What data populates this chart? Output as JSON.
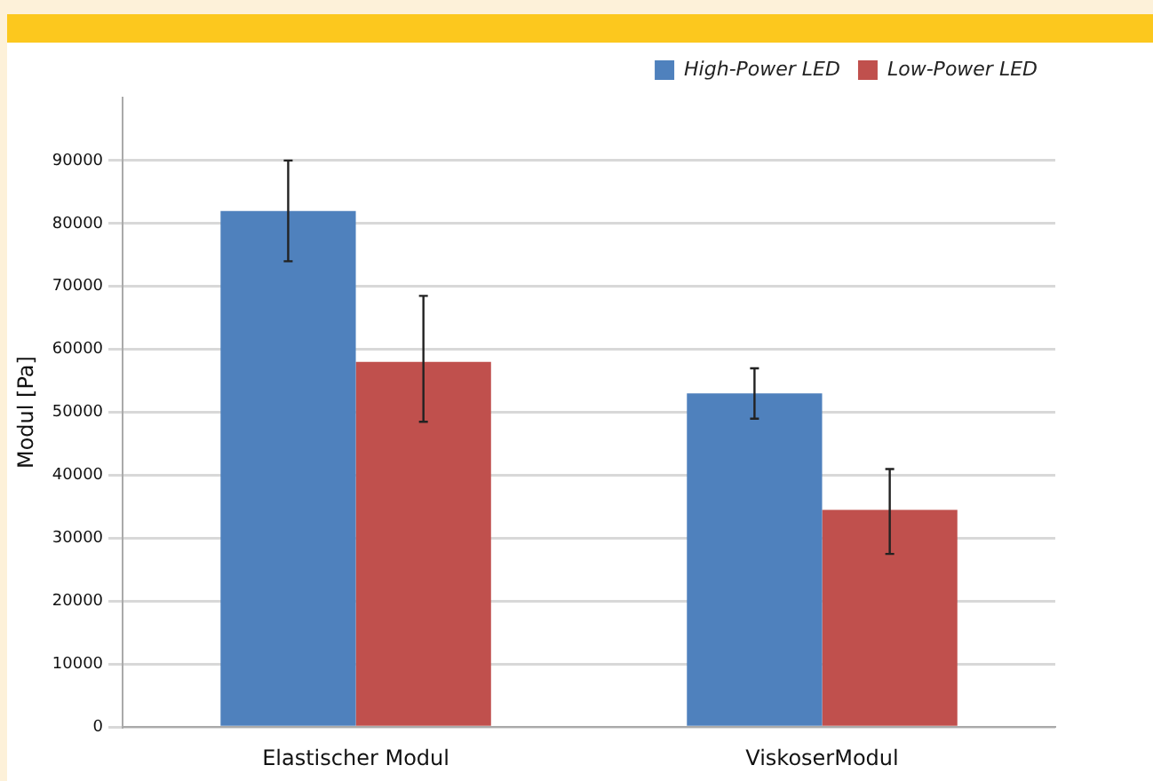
{
  "chart_data": {
    "type": "bar",
    "ylabel": "Modul [Pa]",
    "categories": [
      "Elastischer Modul",
      "ViskoserModul"
    ],
    "series": [
      {
        "name": "High-Power LED",
        "color": "#4f81bd",
        "values": [
          82000,
          53000
        ],
        "errors": [
          [
            74000,
            90000
          ],
          [
            49000,
            57000
          ]
        ]
      },
      {
        "name": "Low-Power LED",
        "color": "#c0504d",
        "values": [
          58000,
          34500
        ],
        "errors": [
          [
            48500,
            68500
          ],
          [
            27500,
            41000
          ]
        ]
      }
    ],
    "ylim": [
      0,
      100000
    ],
    "yticks": [
      0,
      10000,
      20000,
      30000,
      40000,
      50000,
      60000,
      70000,
      80000,
      90000
    ],
    "grid": "y",
    "legend": "top right"
  }
}
